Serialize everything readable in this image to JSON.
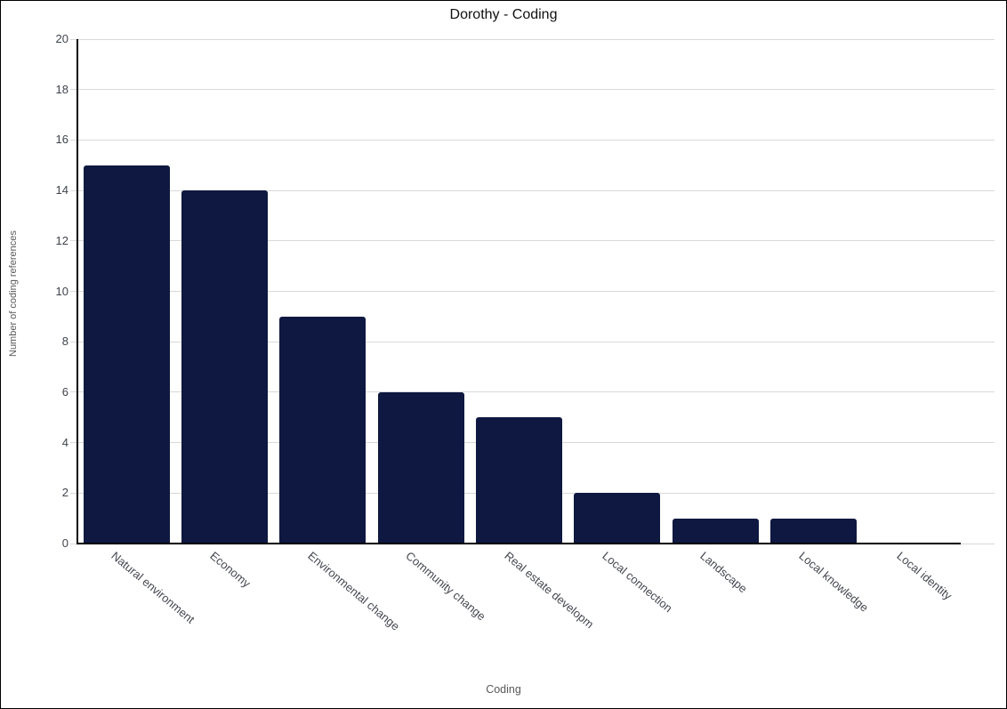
{
  "title": "Dorothy - Coding",
  "colors": {
    "bar": "#0e1840",
    "gridline": "#d9d9d9",
    "axis_line": "#000000",
    "tick_label": "#3f434c",
    "axis_title": "#595959",
    "title": "#111111",
    "background": "#ffffff",
    "border": "#000000"
  },
  "chart_data": {
    "type": "bar",
    "title": "Dorothy - Coding",
    "xlabel": "Coding",
    "ylabel": "Number of coding references",
    "categories": [
      "Natural environment",
      "Economy",
      "Environmental change",
      "Community change",
      "Real estate developm",
      "Local connection",
      "Landscape",
      "Local knowledge",
      "Local identity"
    ],
    "values": [
      15,
      14,
      9,
      6,
      5,
      2,
      1,
      1,
      0
    ],
    "ylim": [
      0,
      20
    ],
    "ytick_step": 2,
    "grid": "horizontal",
    "legend": "none",
    "bar_color": "#0e1840",
    "x_label_rotation_deg": 40
  }
}
